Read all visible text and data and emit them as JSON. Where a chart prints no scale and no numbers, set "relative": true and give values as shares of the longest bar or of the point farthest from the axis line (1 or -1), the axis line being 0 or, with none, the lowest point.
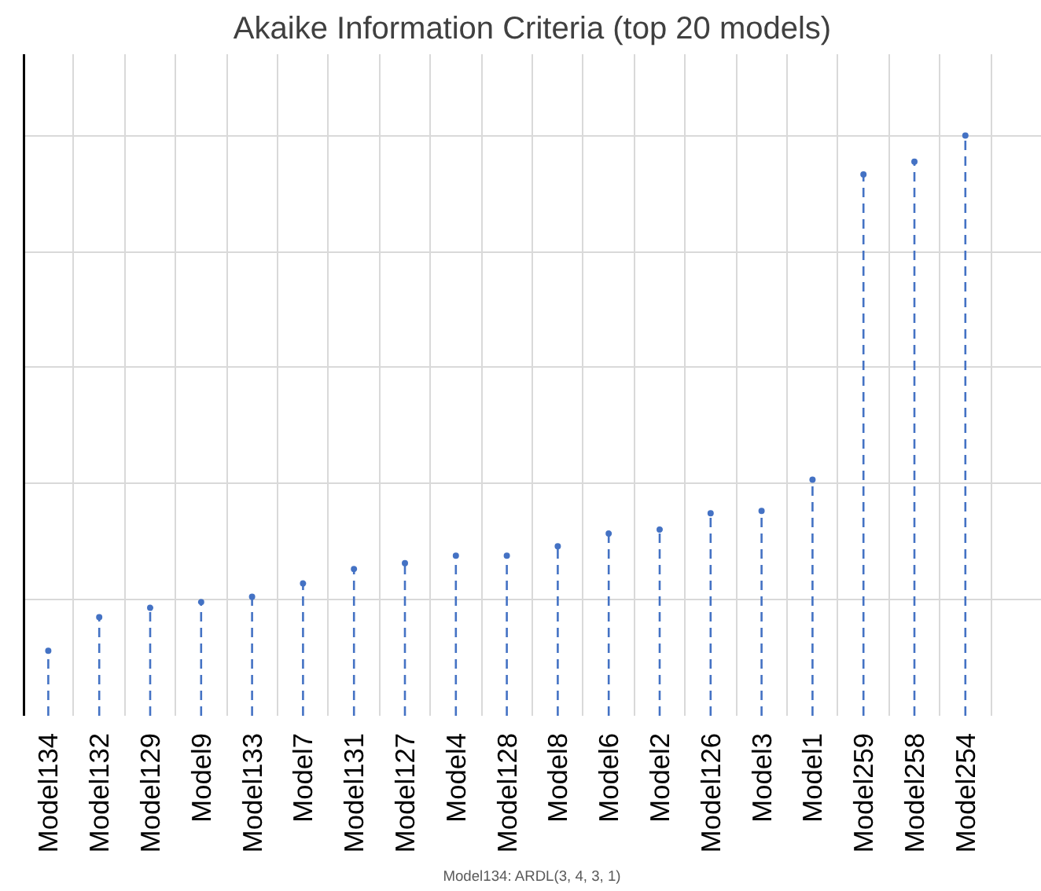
{
  "chart_data": {
    "type": "lollipop",
    "title": "Akaike Information Criteria (top 20 models)",
    "categories": [
      "Model134",
      "Model132",
      "Model129",
      "Model9",
      "Model133",
      "Model7",
      "Model131",
      "Model127",
      "Model4",
      "Model128",
      "Model8",
      "Model6",
      "Model2",
      "Model126",
      "Model3",
      "Model1",
      "Model259",
      "Model258",
      "Model254",
      null
    ],
    "values": [
      0.112,
      0.17,
      0.186,
      0.196,
      0.205,
      0.228,
      0.253,
      0.263,
      0.276,
      0.276,
      0.292,
      0.314,
      0.321,
      0.349,
      0.353,
      0.407,
      0.933,
      0.955,
      1,
      null
    ],
    "color": "#4472c4",
    "relative": true,
    "grid": true,
    "marker": "circle",
    "line_style": "dashed",
    "annotations": [
      "Model134: ARDL(3, 4, 3, 1)"
    ]
  }
}
